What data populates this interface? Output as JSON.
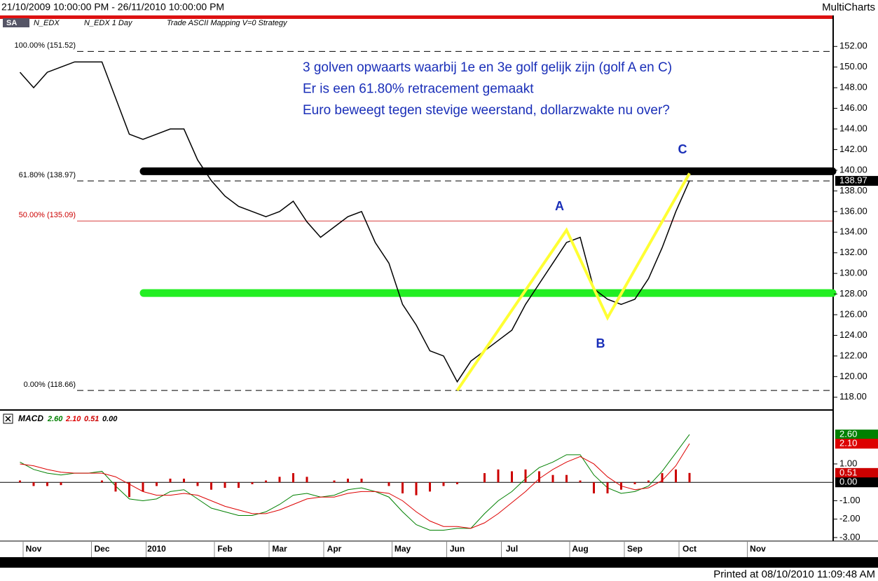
{
  "header": {
    "range": "21/10/2009 10:00:00 PM - 26/11/2010 10:00:00 PM",
    "app": "MultiCharts"
  },
  "toolbar": {
    "symbol_box": "SA",
    "symbol": "N_EDX",
    "description": "N_EDX  1 Day",
    "strategy": "Trade  ASCII Mapping  V=0  Strategy"
  },
  "footer": "Printed at 08/10/2010 11:09:48 AM",
  "chart_data": [
    {
      "type": "line",
      "series": [
        {
          "color": "#000000",
          "values": [
            149.5,
            148,
            149.5,
            150,
            150.5,
            150.5,
            150.5,
            147,
            143.5,
            143,
            143.5,
            144,
            144,
            141,
            139,
            137.5,
            136.5,
            136,
            135.5,
            136,
            137,
            135,
            133.5,
            134.5,
            135.5,
            136,
            133,
            131,
            127,
            125,
            122.5,
            122,
            119.5,
            121.5,
            122.5,
            123.5,
            124.5,
            127,
            129,
            131,
            133,
            133.5,
            128.5,
            127.5,
            127,
            127.5,
            129.5,
            132.5,
            136,
            139,
            null,
            null,
            null,
            null,
            null,
            null,
            null,
            null
          ]
        }
      ],
      "ylim": [
        116.9,
        154.6
      ],
      "yticks": [
        {
          "value": 118,
          "label": "118.00"
        },
        {
          "value": 120,
          "label": "120.00"
        },
        {
          "value": 122,
          "label": "122.00"
        },
        {
          "value": 124,
          "label": "124.00"
        },
        {
          "value": 126,
          "label": "126.00"
        },
        {
          "value": 128,
          "label": "128.00"
        },
        {
          "value": 130,
          "label": "130.00"
        },
        {
          "value": 132,
          "label": "132.00"
        },
        {
          "value": 134,
          "label": "134.00"
        },
        {
          "value": 136,
          "label": "136.00"
        },
        {
          "value": 138,
          "label": "138.00"
        },
        {
          "value": 140,
          "label": "140.00"
        },
        {
          "value": 142,
          "label": "142.00"
        },
        {
          "value": 144,
          "label": "144.00"
        },
        {
          "value": 146,
          "label": "146.00"
        },
        {
          "value": 148,
          "label": "148.00"
        },
        {
          "value": 150,
          "label": "150.00"
        },
        {
          "value": 152,
          "label": "152.00"
        }
      ],
      "levels": [
        {
          "value": 151.52,
          "label": "100.00% (151.52)",
          "color": "#000000",
          "style": "dashed"
        },
        {
          "value": 138.97,
          "label": "61.80% (138.97)",
          "color": "#000000",
          "style": "dashed"
        },
        {
          "value": 135.09,
          "label": "50.00% (135.09)",
          "color": "#cc0000",
          "style": "solid"
        },
        {
          "value": 118.66,
          "label": "0.00% (118.66)",
          "color": "#000000",
          "style": "dashed"
        }
      ],
      "bands": [
        {
          "value": 139.9,
          "color": "#000000"
        },
        {
          "value": 128.1,
          "color": "#22ee22"
        }
      ],
      "waves": {
        "color": "#ffff33",
        "label_color": "#1a2fb8",
        "values": [
          null,
          null,
          null,
          null,
          null,
          null,
          null,
          null,
          null,
          null,
          null,
          null,
          null,
          null,
          null,
          null,
          null,
          null,
          null,
          null,
          null,
          null,
          null,
          null,
          null,
          null,
          null,
          null,
          null,
          null,
          null,
          null,
          118.66,
          null,
          null,
          null,
          null,
          null,
          null,
          null,
          134.2,
          null,
          null,
          125.7,
          null,
          null,
          null,
          null,
          null,
          139.7,
          null,
          null,
          null,
          null,
          null,
          null,
          null,
          null
        ],
        "labels": [
          null,
          null,
          null,
          null,
          null,
          null,
          null,
          null,
          null,
          null,
          null,
          null,
          null,
          null,
          null,
          null,
          null,
          null,
          null,
          null,
          null,
          null,
          null,
          null,
          null,
          null,
          null,
          null,
          null,
          null,
          null,
          null,
          null,
          null,
          null,
          null,
          null,
          null,
          null,
          null,
          "A",
          null,
          null,
          "B",
          null,
          null,
          null,
          null,
          null,
          "C",
          null,
          null,
          null,
          null,
          null,
          null,
          null,
          null
        ]
      },
      "annotations": [
        "3 golven opwaarts waarbij 1e en 3e golf gelijk zijn (golf A en C)",
        "Er is een 61.80% retracement gemaakt",
        "Euro beweegt tegen stevige weerstand, dollarzwakte nu over?"
      ],
      "last": {
        "value": 138.97,
        "label": "138.97"
      }
    },
    {
      "type": "macd",
      "title": "MACD",
      "categories": [
        null,
        "Nov",
        null,
        null,
        null,
        null,
        "Dec",
        null,
        null,
        null,
        "2010",
        null,
        null,
        null,
        null,
        "Feb",
        null,
        null,
        null,
        "Mar",
        null,
        null,
        null,
        "Apr",
        null,
        null,
        null,
        null,
        "May",
        null,
        null,
        null,
        "Jun",
        null,
        null,
        null,
        "Jul",
        null,
        null,
        null,
        null,
        "Aug",
        null,
        null,
        null,
        "Sep",
        null,
        null,
        null,
        "Oct",
        null,
        null,
        null,
        null,
        "Nov",
        null,
        null,
        null
      ],
      "series": [
        {
          "color": "#008000",
          "values": [
            1.1,
            0.7,
            0.5,
            0.4,
            0.5,
            0.5,
            0.6,
            -0.2,
            -0.9,
            -1.0,
            -0.9,
            -0.5,
            -0.4,
            -0.9,
            -1.4,
            -1.6,
            -1.8,
            -1.8,
            -1.6,
            -1.2,
            -0.7,
            -0.6,
            -0.8,
            -0.7,
            -0.4,
            -0.3,
            -0.5,
            -0.8,
            -1.6,
            -2.3,
            -2.6,
            -2.6,
            -2.5,
            -2.5,
            -1.7,
            -1.0,
            -0.5,
            0.2,
            0.8,
            1.1,
            1.5,
            1.5,
            0.4,
            -0.3,
            -0.6,
            -0.5,
            -0.2,
            0.6,
            1.6,
            2.6,
            null,
            null,
            null,
            null,
            null,
            null,
            null,
            null
          ],
          "last": {
            "value": 2.6,
            "label": "2.60"
          }
        },
        {
          "color": "#dd0000",
          "values": [
            1.0,
            0.9,
            0.7,
            0.55,
            0.5,
            0.5,
            0.5,
            0.3,
            -0.1,
            -0.5,
            -0.7,
            -0.7,
            -0.6,
            -0.7,
            -1.0,
            -1.3,
            -1.5,
            -1.7,
            -1.7,
            -1.5,
            -1.2,
            -0.9,
            -0.8,
            -0.8,
            -0.6,
            -0.5,
            -0.5,
            -0.6,
            -1.0,
            -1.6,
            -2.1,
            -2.4,
            -2.4,
            -2.5,
            -2.2,
            -1.7,
            -1.1,
            -0.5,
            0.2,
            0.7,
            1.1,
            1.4,
            1.0,
            0.3,
            -0.2,
            -0.4,
            -0.3,
            0.1,
            0.9,
            2.1,
            null,
            null,
            null,
            null,
            null,
            null,
            null,
            null
          ],
          "last": {
            "value": 2.1,
            "label": "2.10"
          }
        },
        {
          "color": "#cc0000",
          "style": "histogram",
          "values": [
            0.1,
            -0.2,
            -0.2,
            -0.15,
            0,
            0,
            0.1,
            -0.5,
            -0.8,
            -0.5,
            -0.2,
            0.2,
            0.2,
            -0.2,
            -0.4,
            -0.3,
            -0.3,
            -0.1,
            0.1,
            0.3,
            0.5,
            0.3,
            0,
            0.1,
            0.2,
            0.2,
            0,
            -0.2,
            -0.6,
            -0.7,
            -0.5,
            -0.2,
            -0.1,
            0,
            0.5,
            0.7,
            0.6,
            0.7,
            0.6,
            0.4,
            0.4,
            0.1,
            -0.6,
            -0.6,
            -0.4,
            -0.1,
            0.1,
            0.5,
            0.7,
            0.51,
            null,
            null,
            null,
            null,
            null,
            null,
            null,
            null
          ],
          "last": {
            "value": 0.51,
            "label": "0.51"
          }
        }
      ],
      "zero": {
        "value": 0,
        "label": "0.00"
      },
      "ylim": [
        -3.19,
        3.74
      ],
      "yticks": [
        {
          "value": -3,
          "label": "-3.00"
        },
        {
          "value": -2,
          "label": "-2.00"
        },
        {
          "value": -1,
          "label": "-1.00"
        },
        {
          "value": 1,
          "label": "1.00"
        }
      ]
    }
  ]
}
